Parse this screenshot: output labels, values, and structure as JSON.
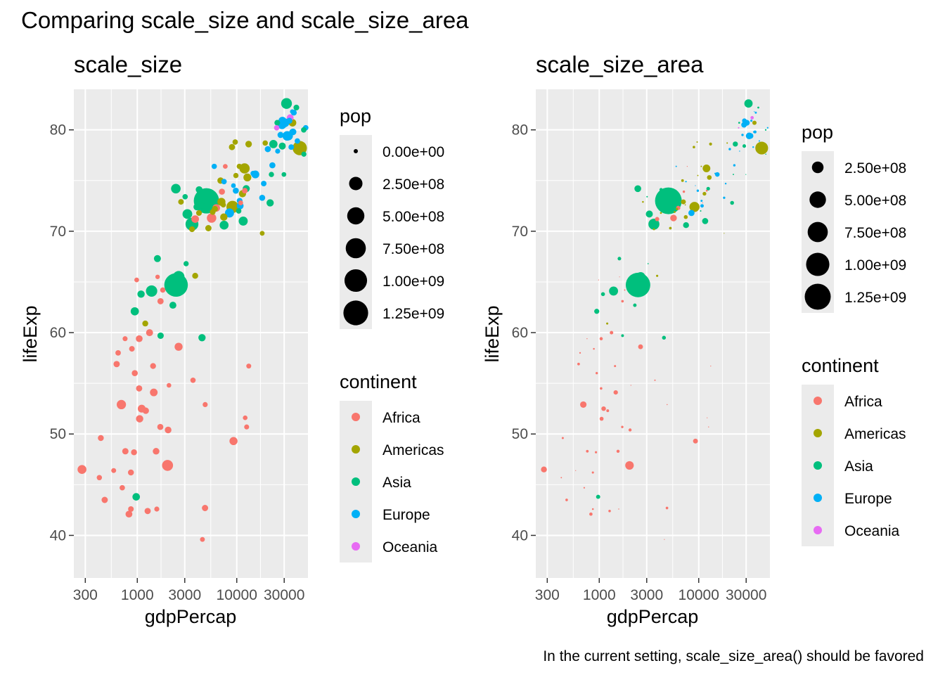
{
  "title": "Comparing scale_size and scale_size_area",
  "caption": "In the current setting, scale_size_area() should be favored",
  "colors": {
    "panel_bg": "#EBEBEB",
    "grid": "#FFFFFF",
    "tick_text": "#4D4D4D",
    "Africa": "#F8766D",
    "Americas": "#A3A500",
    "Asia": "#00BF7D",
    "Europe": "#00B0F6",
    "Oceania": "#E76BF3"
  },
  "chart_data": [
    {
      "type": "scatter",
      "title": "scale_size",
      "xlabel": "gdpPercap",
      "ylabel": "lifeExp",
      "x_scale": "log10",
      "xlim": [
        230,
        52000
      ],
      "ylim": [
        35.8,
        84.0
      ],
      "x_ticks": [
        300,
        1000,
        3000,
        10000,
        30000
      ],
      "x_tick_labels": [
        "300",
        "1000",
        "3000",
        "10000",
        "30000"
      ],
      "y_ticks": [
        40,
        50,
        60,
        70,
        80
      ],
      "y_tick_labels": [
        "40",
        "50",
        "60",
        "70",
        "80"
      ],
      "size_scale": "scale_size",
      "legend": {
        "size_title": "pop",
        "size_breaks": [
          0,
          250000000,
          500000000,
          750000000,
          1000000000,
          1250000000
        ],
        "size_labels": [
          "0.00e+00",
          "2.50e+08",
          "5.00e+08",
          "7.50e+08",
          "1.00e+09",
          "1.25e+09"
        ],
        "color_title": "continent",
        "color_labels": [
          "Africa",
          "Americas",
          "Asia",
          "Europe",
          "Oceania"
        ]
      }
    },
    {
      "type": "scatter",
      "title": "scale_size_area",
      "xlabel": "gdpPercap",
      "ylabel": "lifeExp",
      "x_scale": "log10",
      "xlim": [
        230,
        52000
      ],
      "ylim": [
        35.8,
        84.0
      ],
      "x_ticks": [
        300,
        1000,
        3000,
        10000,
        30000
      ],
      "x_tick_labels": [
        "300",
        "1000",
        "3000",
        "10000",
        "30000"
      ],
      "y_ticks": [
        40,
        50,
        60,
        70,
        80
      ],
      "y_tick_labels": [
        "40",
        "50",
        "60",
        "70",
        "80"
      ],
      "size_scale": "scale_size_area",
      "legend": {
        "size_title": "pop",
        "size_breaks": [
          250000000,
          500000000,
          750000000,
          1000000000,
          1250000000
        ],
        "size_labels": [
          "2.50e+08",
          "5.00e+08",
          "7.50e+08",
          "1.00e+09",
          "1.25e+09"
        ],
        "color_title": "continent",
        "color_labels": [
          "Africa",
          "Americas",
          "Asia",
          "Europe",
          "Oceania"
        ]
      }
    }
  ],
  "points": [
    {
      "continent": "Asia",
      "gdpPercap": 975,
      "lifeExp": 43.8,
      "pop": 31889923
    },
    {
      "continent": "Europe",
      "gdpPercap": 5937,
      "lifeExp": 76.4,
      "pop": 3600523
    },
    {
      "continent": "Africa",
      "gdpPercap": 6223,
      "lifeExp": 72.3,
      "pop": 33333216
    },
    {
      "continent": "Africa",
      "gdpPercap": 4797,
      "lifeExp": 42.7,
      "pop": 12420476
    },
    {
      "continent": "Americas",
      "gdpPercap": 12779,
      "lifeExp": 75.3,
      "pop": 40301927
    },
    {
      "continent": "Oceania",
      "gdpPercap": 34435,
      "lifeExp": 81.2,
      "pop": 20434176
    },
    {
      "continent": "Europe",
      "gdpPercap": 36126,
      "lifeExp": 79.8,
      "pop": 8199783
    },
    {
      "continent": "Asia",
      "gdpPercap": 29796,
      "lifeExp": 75.6,
      "pop": 708573
    },
    {
      "continent": "Asia",
      "gdpPercap": 1391,
      "lifeExp": 64.1,
      "pop": 150448339
    },
    {
      "continent": "Europe",
      "gdpPercap": 33693,
      "lifeExp": 79.4,
      "pop": 10392226
    },
    {
      "continent": "Africa",
      "gdpPercap": 1441,
      "lifeExp": 56.7,
      "pop": 8078314
    },
    {
      "continent": "Americas",
      "gdpPercap": 3822,
      "lifeExp": 65.6,
      "pop": 9119152
    },
    {
      "continent": "Europe",
      "gdpPercap": 7446,
      "lifeExp": 74.9,
      "pop": 4552198
    },
    {
      "continent": "Africa",
      "gdpPercap": 12570,
      "lifeExp": 50.7,
      "pop": 1639131
    },
    {
      "continent": "Americas",
      "gdpPercap": 9066,
      "lifeExp": 72.4,
      "pop": 190010647
    },
    {
      "continent": "Europe",
      "gdpPercap": 10681,
      "lifeExp": 73.0,
      "pop": 7322858
    },
    {
      "continent": "Africa",
      "gdpPercap": 1217,
      "lifeExp": 52.3,
      "pop": 14326203
    },
    {
      "continent": "Africa",
      "gdpPercap": 430,
      "lifeExp": 49.6,
      "pop": 8390505
    },
    {
      "continent": "Asia",
      "gdpPercap": 1714,
      "lifeExp": 59.7,
      "pop": 14131858
    },
    {
      "continent": "Africa",
      "gdpPercap": 2042,
      "lifeExp": 50.4,
      "pop": 17696293
    },
    {
      "continent": "Americas",
      "gdpPercap": 36319,
      "lifeExp": 80.7,
      "pop": 33390141
    },
    {
      "continent": "Africa",
      "gdpPercap": 706,
      "lifeExp": 44.7,
      "pop": 4369038
    },
    {
      "continent": "Africa",
      "gdpPercap": 1704,
      "lifeExp": 50.7,
      "pop": 10238807
    },
    {
      "continent": "Americas",
      "gdpPercap": 13172,
      "lifeExp": 78.6,
      "pop": 16284741
    },
    {
      "continent": "Asia",
      "gdpPercap": 4959,
      "lifeExp": 73.0,
      "pop": 1318683096
    },
    {
      "continent": "Americas",
      "gdpPercap": 7007,
      "lifeExp": 72.9,
      "pop": 44227550
    },
    {
      "continent": "Africa",
      "gdpPercap": 986,
      "lifeExp": 65.2,
      "pop": 710960
    },
    {
      "continent": "Africa",
      "gdpPercap": 278,
      "lifeExp": 46.5,
      "pop": 64606759
    },
    {
      "continent": "Africa",
      "gdpPercap": 3633,
      "lifeExp": 55.3,
      "pop": 3800610
    },
    {
      "continent": "Americas",
      "gdpPercap": 9645,
      "lifeExp": 78.8,
      "pop": 4133884
    },
    {
      "continent": "Africa",
      "gdpPercap": 1545,
      "lifeExp": 48.3,
      "pop": 18013409
    },
    {
      "continent": "Europe",
      "gdpPercap": 14619,
      "lifeExp": 75.7,
      "pop": 4493312
    },
    {
      "continent": "Americas",
      "gdpPercap": 8948,
      "lifeExp": 78.3,
      "pop": 11416987
    },
    {
      "continent": "Europe",
      "gdpPercap": 22833,
      "lifeExp": 76.5,
      "pop": 10228744
    },
    {
      "continent": "Europe",
      "gdpPercap": 35278,
      "lifeExp": 78.3,
      "pop": 5468120
    },
    {
      "continent": "Africa",
      "gdpPercap": 2082,
      "lifeExp": 54.8,
      "pop": 496374
    },
    {
      "continent": "Americas",
      "gdpPercap": 6025,
      "lifeExp": 72.2,
      "pop": 9319622
    },
    {
      "continent": "Americas",
      "gdpPercap": 6873,
      "lifeExp": 75.0,
      "pop": 13755680
    },
    {
      "continent": "Africa",
      "gdpPercap": 5581,
      "lifeExp": 71.3,
      "pop": 80264543
    },
    {
      "continent": "Americas",
      "gdpPercap": 5728,
      "lifeExp": 71.9,
      "pop": 6939688
    },
    {
      "continent": "Africa",
      "gdpPercap": 12154,
      "lifeExp": 51.6,
      "pop": 551201
    },
    {
      "continent": "Africa",
      "gdpPercap": 641,
      "lifeExp": 58.0,
      "pop": 4906585
    },
    {
      "continent": "Africa",
      "gdpPercap": 691,
      "lifeExp": 52.9,
      "pop": 76511887
    },
    {
      "continent": "Europe",
      "gdpPercap": 33207,
      "lifeExp": 79.3,
      "pop": 5238460
    },
    {
      "continent": "Europe",
      "gdpPercap": 30470,
      "lifeExp": 80.7,
      "pop": 61083916
    },
    {
      "continent": "Africa",
      "gdpPercap": 13206,
      "lifeExp": 56.7,
      "pop": 1454867
    },
    {
      "continent": "Africa",
      "gdpPercap": 753,
      "lifeExp": 59.4,
      "pop": 1688359
    },
    {
      "continent": "Europe",
      "gdpPercap": 32170,
      "lifeExp": 79.4,
      "pop": 82400996
    },
    {
      "continent": "Africa",
      "gdpPercap": 1327,
      "lifeExp": 60.0,
      "pop": 22873338
    },
    {
      "continent": "Europe",
      "gdpPercap": 27538,
      "lifeExp": 79.5,
      "pop": 10706290
    },
    {
      "continent": "Americas",
      "gdpPercap": 5186,
      "lifeExp": 70.3,
      "pop": 12572928
    },
    {
      "continent": "Africa",
      "gdpPercap": 943,
      "lifeExp": 56.0,
      "pop": 9947814
    },
    {
      "continent": "Africa",
      "gdpPercap": 579,
      "lifeExp": 46.4,
      "pop": 1472041
    },
    {
      "continent": "Americas",
      "gdpPercap": 1202,
      "lifeExp": 60.9,
      "pop": 8502814
    },
    {
      "continent": "Americas",
      "gdpPercap": 3548,
      "lifeExp": 70.2,
      "pop": 7483763
    },
    {
      "continent": "Asia",
      "gdpPercap": 39725,
      "lifeExp": 82.2,
      "pop": 6980412
    },
    {
      "continent": "Europe",
      "gdpPercap": 18009,
      "lifeExp": 73.3,
      "pop": 9956108
    },
    {
      "continent": "Europe",
      "gdpPercap": 36181,
      "lifeExp": 81.8,
      "pop": 301931
    },
    {
      "continent": "Asia",
      "gdpPercap": 2452,
      "lifeExp": 64.7,
      "pop": 1110396331
    },
    {
      "continent": "Asia",
      "gdpPercap": 3541,
      "lifeExp": 70.7,
      "pop": 223547000
    },
    {
      "continent": "Asia",
      "gdpPercap": 11606,
      "lifeExp": 71.0,
      "pop": 69453570
    },
    {
      "continent": "Asia",
      "gdpPercap": 4471,
      "lifeExp": 59.5,
      "pop": 27499638
    },
    {
      "continent": "Europe",
      "gdpPercap": 40676,
      "lifeExp": 78.9,
      "pop": 4109086
    },
    {
      "continent": "Asia",
      "gdpPercap": 25523,
      "lifeExp": 80.7,
      "pop": 6426679
    },
    {
      "continent": "Europe",
      "gdpPercap": 28570,
      "lifeExp": 80.5,
      "pop": 58147733
    },
    {
      "continent": "Americas",
      "gdpPercap": 7321,
      "lifeExp": 72.6,
      "pop": 2780132
    },
    {
      "continent": "Asia",
      "gdpPercap": 31656,
      "lifeExp": 82.6,
      "pop": 127467972
    },
    {
      "continent": "Asia",
      "gdpPercap": 4519,
      "lifeExp": 72.5,
      "pop": 6053193
    },
    {
      "continent": "Africa",
      "gdpPercap": 1463,
      "lifeExp": 54.1,
      "pop": 35610177
    },
    {
      "continent": "Asia",
      "gdpPercap": 1593,
      "lifeExp": 67.3,
      "pop": 23301725
    },
    {
      "continent": "Asia",
      "gdpPercap": 23348,
      "lifeExp": 78.6,
      "pop": 49044790
    },
    {
      "continent": "Asia",
      "gdpPercap": 47307,
      "lifeExp": 77.6,
      "pop": 2505559
    },
    {
      "continent": "Asia",
      "gdpPercap": 10461,
      "lifeExp": 72.0,
      "pop": 3921278
    },
    {
      "continent": "Africa",
      "gdpPercap": 1569,
      "lifeExp": 42.6,
      "pop": 2012649
    },
    {
      "continent": "Africa",
      "gdpPercap": 415,
      "lifeExp": 45.7,
      "pop": 3193942
    },
    {
      "continent": "Africa",
      "gdpPercap": 12057,
      "lifeExp": 74.0,
      "pop": 6036914
    },
    {
      "continent": "Africa",
      "gdpPercap": 1045,
      "lifeExp": 59.4,
      "pop": 19167654
    },
    {
      "continent": "Africa",
      "gdpPercap": 759,
      "lifeExp": 48.3,
      "pop": 13327079
    },
    {
      "continent": "Asia",
      "gdpPercap": 12452,
      "lifeExp": 74.2,
      "pop": 24821286
    },
    {
      "continent": "Africa",
      "gdpPercap": 1043,
      "lifeExp": 54.5,
      "pop": 12031795
    },
    {
      "continent": "Africa",
      "gdpPercap": 1803,
      "lifeExp": 64.2,
      "pop": 3270065
    },
    {
      "continent": "Africa",
      "gdpPercap": 10957,
      "lifeExp": 72.8,
      "pop": 1250882
    },
    {
      "continent": "Americas",
      "gdpPercap": 11978,
      "lifeExp": 76.2,
      "pop": 108700891
    },
    {
      "continent": "Asia",
      "gdpPercap": 3096,
      "lifeExp": 66.8,
      "pop": 2874127
    },
    {
      "continent": "Europe",
      "gdpPercap": 9254,
      "lifeExp": 74.5,
      "pop": 684736
    },
    {
      "continent": "Africa",
      "gdpPercap": 3820,
      "lifeExp": 71.2,
      "pop": 33757175
    },
    {
      "continent": "Africa",
      "gdpPercap": 824,
      "lifeExp": 42.1,
      "pop": 19951656
    },
    {
      "continent": "Asia",
      "gdpPercap": 944,
      "lifeExp": 62.1,
      "pop": 47761980
    },
    {
      "continent": "Africa",
      "gdpPercap": 4811,
      "lifeExp": 52.9,
      "pop": 2055080
    },
    {
      "continent": "Asia",
      "gdpPercap": 1091,
      "lifeExp": 63.8,
      "pop": 28901790
    },
    {
      "continent": "Europe",
      "gdpPercap": 36798,
      "lifeExp": 79.8,
      "pop": 16570613
    },
    {
      "continent": "Oceania",
      "gdpPercap": 25185,
      "lifeExp": 80.2,
      "pop": 4115771
    },
    {
      "continent": "Americas",
      "gdpPercap": 2749,
      "lifeExp": 72.9,
      "pop": 5675356
    },
    {
      "continent": "Africa",
      "gdpPercap": 620,
      "lifeExp": 56.9,
      "pop": 12894865
    },
    {
      "continent": "Africa",
      "gdpPercap": 2014,
      "lifeExp": 46.9,
      "pop": 135031164
    },
    {
      "continent": "Europe",
      "gdpPercap": 49357,
      "lifeExp": 80.2,
      "pop": 4627926
    },
    {
      "continent": "Asia",
      "gdpPercap": 22316,
      "lifeExp": 75.6,
      "pop": 3204897
    },
    {
      "continent": "Asia",
      "gdpPercap": 2606,
      "lifeExp": 65.5,
      "pop": 169270617
    },
    {
      "continent": "Americas",
      "gdpPercap": 9809,
      "lifeExp": 75.5,
      "pop": 3242173
    },
    {
      "continent": "Americas",
      "gdpPercap": 4173,
      "lifeExp": 71.8,
      "pop": 6667147
    },
    {
      "continent": "Americas",
      "gdpPercap": 7409,
      "lifeExp": 71.4,
      "pop": 28674757
    },
    {
      "continent": "Asia",
      "gdpPercap": 3190,
      "lifeExp": 71.7,
      "pop": 91077287
    },
    {
      "continent": "Europe",
      "gdpPercap": 15390,
      "lifeExp": 75.6,
      "pop": 38518241
    },
    {
      "continent": "Europe",
      "gdpPercap": 20510,
      "lifeExp": 78.1,
      "pop": 10642836
    },
    {
      "continent": "Americas",
      "gdpPercap": 19329,
      "lifeExp": 78.7,
      "pop": 3942491
    },
    {
      "continent": "Africa",
      "gdpPercap": 7670,
      "lifeExp": 76.4,
      "pop": 798094
    },
    {
      "continent": "Europe",
      "gdpPercap": 10808,
      "lifeExp": 72.5,
      "pop": 22276056
    },
    {
      "continent": "Africa",
      "gdpPercap": 863,
      "lifeExp": 46.2,
      "pop": 8860588
    },
    {
      "continent": "Africa",
      "gdpPercap": 1598,
      "lifeExp": 65.5,
      "pop": 199579
    },
    {
      "continent": "Asia",
      "gdpPercap": 21655,
      "lifeExp": 72.8,
      "pop": 27601038
    },
    {
      "continent": "Africa",
      "gdpPercap": 1712,
      "lifeExp": 63.1,
      "pop": 12267493
    },
    {
      "continent": "Europe",
      "gdpPercap": 9787,
      "lifeExp": 74.0,
      "pop": 10150265
    },
    {
      "continent": "Africa",
      "gdpPercap": 863,
      "lifeExp": 42.6,
      "pop": 6144562
    },
    {
      "continent": "Asia",
      "gdpPercap": 47143,
      "lifeExp": 80.0,
      "pop": 4553009
    },
    {
      "continent": "Europe",
      "gdpPercap": 18678,
      "lifeExp": 74.7,
      "pop": 5447502
    },
    {
      "continent": "Europe",
      "gdpPercap": 25768,
      "lifeExp": 77.9,
      "pop": 2009245
    },
    {
      "continent": "Africa",
      "gdpPercap": 926,
      "lifeExp": 48.2,
      "pop": 9118773
    },
    {
      "continent": "Africa",
      "gdpPercap": 9270,
      "lifeExp": 49.3,
      "pop": 43997828
    },
    {
      "continent": "Europe",
      "gdpPercap": 28821,
      "lifeExp": 80.9,
      "pop": 40448191
    },
    {
      "continent": "Asia",
      "gdpPercap": 3970,
      "lifeExp": 72.4,
      "pop": 20378239
    },
    {
      "continent": "Africa",
      "gdpPercap": 2602,
      "lifeExp": 58.6,
      "pop": 42292929
    },
    {
      "continent": "Africa",
      "gdpPercap": 4513,
      "lifeExp": 39.6,
      "pop": 1133066
    },
    {
      "continent": "Europe",
      "gdpPercap": 33860,
      "lifeExp": 80.9,
      "pop": 9031088
    },
    {
      "continent": "Europe",
      "gdpPercap": 37506,
      "lifeExp": 81.7,
      "pop": 7554661
    },
    {
      "continent": "Asia",
      "gdpPercap": 4185,
      "lifeExp": 74.1,
      "pop": 19314747
    },
    {
      "continent": "Asia",
      "gdpPercap": 28718,
      "lifeExp": 78.4,
      "pop": 23174294
    },
    {
      "continent": "Africa",
      "gdpPercap": 1107,
      "lifeExp": 52.5,
      "pop": 38139640
    },
    {
      "continent": "Asia",
      "gdpPercap": 7458,
      "lifeExp": 70.6,
      "pop": 65068149
    },
    {
      "continent": "Africa",
      "gdpPercap": 883,
      "lifeExp": 58.4,
      "pop": 5701579
    },
    {
      "continent": "Americas",
      "gdpPercap": 18009,
      "lifeExp": 69.8,
      "pop": 1056608
    },
    {
      "continent": "Africa",
      "gdpPercap": 7093,
      "lifeExp": 73.9,
      "pop": 10276158
    },
    {
      "continent": "Europe",
      "gdpPercap": 8458,
      "lifeExp": 71.8,
      "pop": 71158647
    },
    {
      "continent": "Africa",
      "gdpPercap": 1056,
      "lifeExp": 51.5,
      "pop": 29170398
    },
    {
      "continent": "Europe",
      "gdpPercap": 33203,
      "lifeExp": 79.4,
      "pop": 60776238
    },
    {
      "continent": "Americas",
      "gdpPercap": 42952,
      "lifeExp": 78.2,
      "pop": 301139947
    },
    {
      "continent": "Americas",
      "gdpPercap": 10611,
      "lifeExp": 76.4,
      "pop": 3447496
    },
    {
      "continent": "Americas",
      "gdpPercap": 11416,
      "lifeExp": 73.7,
      "pop": 26084662
    },
    {
      "continent": "Asia",
      "gdpPercap": 2442,
      "lifeExp": 74.2,
      "pop": 85262356
    },
    {
      "continent": "Asia",
      "gdpPercap": 3025,
      "lifeExp": 73.4,
      "pop": 4018332
    },
    {
      "continent": "Asia",
      "gdpPercap": 2281,
      "lifeExp": 62.7,
      "pop": 22211743
    },
    {
      "continent": "Africa",
      "gdpPercap": 1271,
      "lifeExp": 42.4,
      "pop": 11746035
    },
    {
      "continent": "Africa",
      "gdpPercap": 470,
      "lifeExp": 43.5,
      "pop": 12311143
    }
  ]
}
